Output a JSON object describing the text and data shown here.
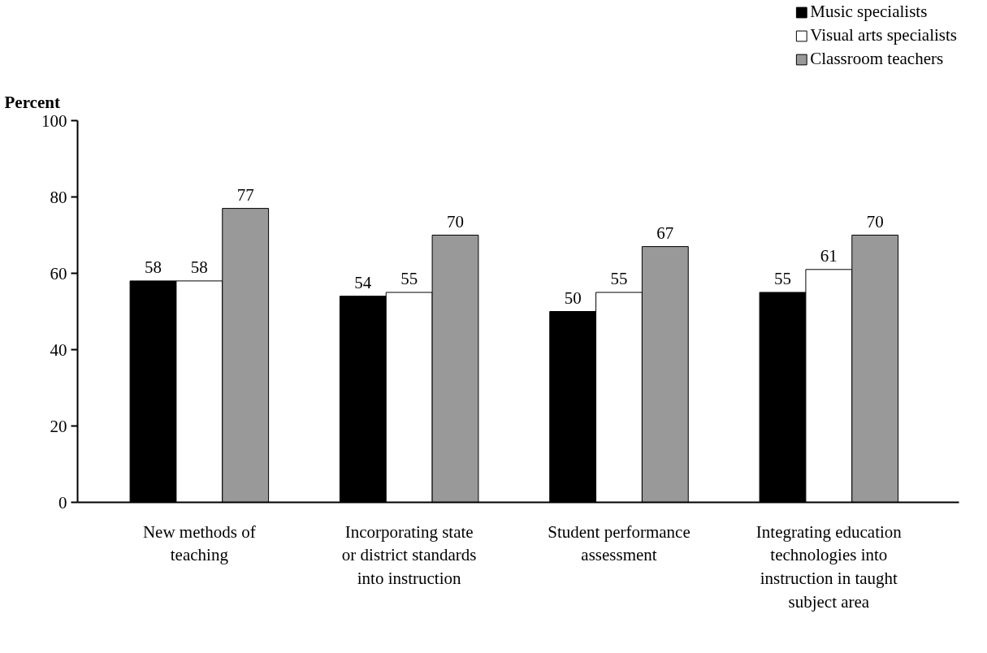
{
  "chart_data": {
    "type": "bar",
    "ylabel": "Percent",
    "categories": [
      "New methods of\nteaching",
      "Incorporating state\nor district standards\ninto instruction",
      "Student performance\nassessment",
      "Integrating education\ntechnologies into\ninstruction in taught\nsubject area"
    ],
    "series": [
      {
        "name": "Music specialists",
        "color": "#000000",
        "values": [
          58,
          54,
          50,
          55
        ]
      },
      {
        "name": "Visual arts specialists",
        "color": "#ffffff",
        "values": [
          58,
          55,
          55,
          61
        ]
      },
      {
        "name": "Classroom teachers",
        "color": "#999999",
        "values": [
          77,
          70,
          67,
          70
        ]
      }
    ],
    "ylim": [
      0,
      100
    ],
    "yticks": [
      0,
      20,
      40,
      60,
      80,
      100
    ],
    "grid": false,
    "legend": "top right",
    "data_labels": true
  }
}
